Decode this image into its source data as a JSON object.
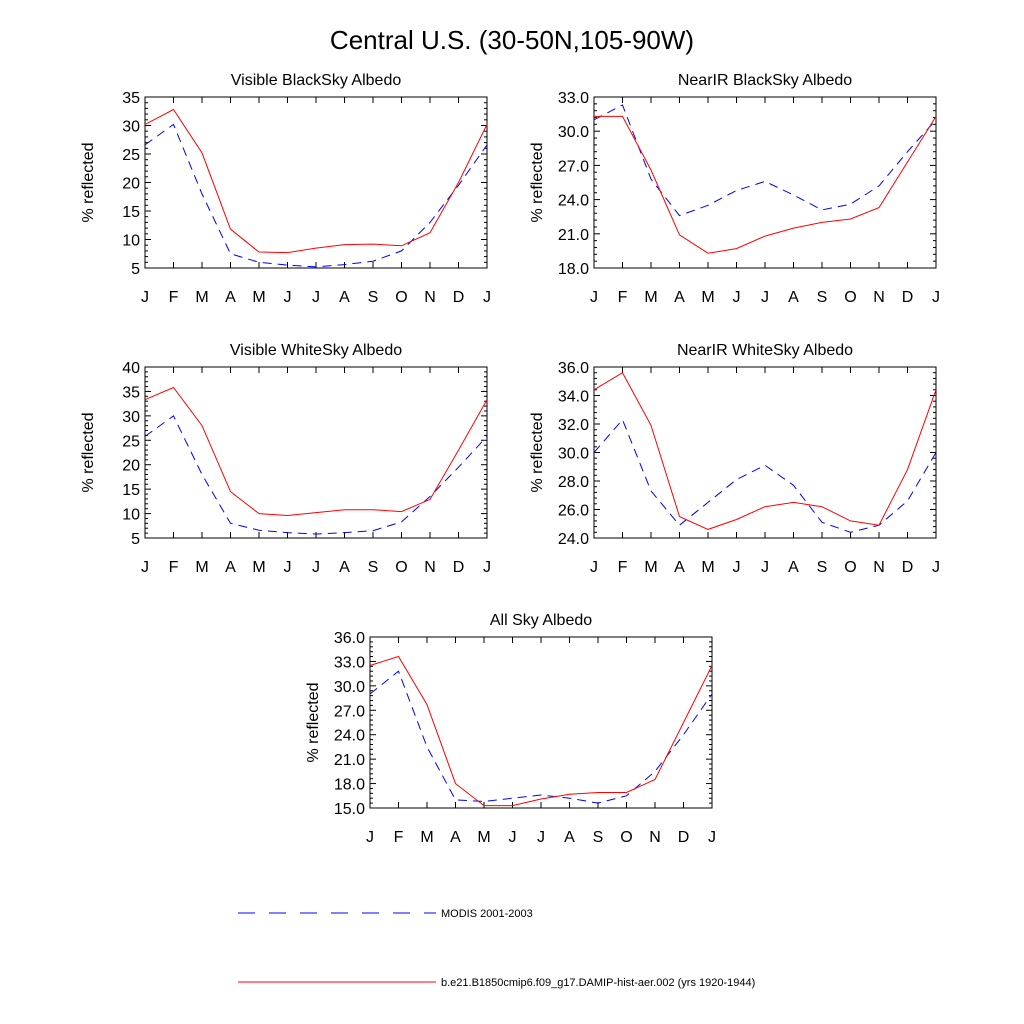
{
  "title": "Central U.S. (30-50N,105-90W)",
  "colors": {
    "model": "#ff0000",
    "modis": "#0000ff"
  },
  "legend": [
    {
      "key": "modis",
      "label": "MODIS 2001-2003",
      "style": "dashed"
    },
    {
      "key": "model",
      "label": "b.e21.B1850cmip6.f09_g17.DAMIP-hist-aer.002 (yrs 1920-1944)",
      "style": "solid"
    }
  ],
  "chart_data": [
    {
      "type": "line",
      "title": "Visible BlackSky Albedo",
      "ylabel": "% reflected",
      "x": [
        "J",
        "F",
        "M",
        "A",
        "M",
        "J",
        "J",
        "A",
        "S",
        "O",
        "N",
        "D",
        "J"
      ],
      "ylim": [
        5,
        35
      ],
      "yticks": [
        "5",
        "10",
        "15",
        "20",
        "25",
        "30",
        "35"
      ],
      "yticks_values": [
        5,
        10,
        15,
        20,
        25,
        30,
        35
      ],
      "series": [
        {
          "key": "modis",
          "values": [
            26.6,
            30.2,
            18.0,
            7.5,
            6.0,
            5.5,
            5.2,
            5.6,
            6.2,
            8.0,
            13.0,
            19.5,
            26.6
          ]
        },
        {
          "key": "model",
          "values": [
            30.2,
            32.8,
            25.2,
            11.8,
            7.8,
            7.7,
            8.5,
            9.1,
            9.2,
            8.9,
            11.2,
            20.0,
            30.2
          ]
        }
      ]
    },
    {
      "type": "line",
      "title": "NearIR BlackSky Albedo",
      "ylabel": "% reflected",
      "x": [
        "J",
        "F",
        "M",
        "A",
        "M",
        "J",
        "J",
        "A",
        "S",
        "O",
        "N",
        "D",
        "J"
      ],
      "ylim": [
        18,
        33
      ],
      "yticks": [
        "18.0",
        "21.0",
        "24.0",
        "27.0",
        "30.0",
        "33.0"
      ],
      "yticks_values": [
        18,
        21,
        24,
        27,
        30,
        33
      ],
      "series": [
        {
          "key": "modis",
          "values": [
            31.0,
            32.3,
            25.8,
            22.6,
            23.5,
            24.8,
            25.6,
            24.4,
            23.1,
            23.6,
            25.2,
            28.2,
            31.0
          ]
        },
        {
          "key": "model",
          "values": [
            31.3,
            31.3,
            26.6,
            20.9,
            19.3,
            19.7,
            20.8,
            21.5,
            22.0,
            22.3,
            23.3,
            27.3,
            31.3
          ]
        }
      ]
    },
    {
      "type": "line",
      "title": "Visible WhiteSky Albedo",
      "ylabel": "% reflected",
      "x": [
        "J",
        "F",
        "M",
        "A",
        "M",
        "J",
        "J",
        "A",
        "S",
        "O",
        "N",
        "D",
        "J"
      ],
      "ylim": [
        5,
        40
      ],
      "yticks": [
        "5",
        "10",
        "15",
        "20",
        "25",
        "30",
        "35",
        "40"
      ],
      "yticks_values": [
        5,
        10,
        15,
        20,
        25,
        30,
        35,
        40
      ],
      "series": [
        {
          "key": "modis",
          "values": [
            25.8,
            30.0,
            18.0,
            8.0,
            6.6,
            6.1,
            5.8,
            6.1,
            6.5,
            8.3,
            13.5,
            19.5,
            25.8
          ]
        },
        {
          "key": "model",
          "values": [
            33.3,
            35.8,
            28.0,
            14.5,
            10.0,
            9.6,
            10.2,
            10.8,
            10.8,
            10.4,
            12.9,
            23.0,
            33.3
          ]
        }
      ]
    },
    {
      "type": "line",
      "title": "NearIR WhiteSky Albedo",
      "ylabel": "% reflected",
      "x": [
        "J",
        "F",
        "M",
        "A",
        "M",
        "J",
        "J",
        "A",
        "S",
        "O",
        "N",
        "D",
        "J"
      ],
      "ylim": [
        24,
        36
      ],
      "yticks": [
        "24.0",
        "26.0",
        "28.0",
        "30.0",
        "32.0",
        "34.0",
        "36.0"
      ],
      "yticks_values": [
        24,
        26,
        28,
        30,
        32,
        34,
        36
      ],
      "series": [
        {
          "key": "modis",
          "values": [
            30.0,
            32.3,
            27.3,
            24.9,
            26.5,
            28.1,
            29.1,
            27.7,
            25.1,
            24.4,
            24.9,
            26.6,
            30.0
          ]
        },
        {
          "key": "model",
          "values": [
            34.4,
            35.6,
            31.9,
            25.5,
            24.6,
            25.3,
            26.2,
            26.5,
            26.2,
            25.2,
            24.9,
            28.8,
            34.4
          ]
        }
      ]
    },
    {
      "type": "line",
      "title": "All Sky Albedo",
      "ylabel": "% reflected",
      "x": [
        "J",
        "F",
        "M",
        "A",
        "M",
        "J",
        "J",
        "A",
        "S",
        "O",
        "N",
        "D",
        "J"
      ],
      "ylim": [
        15,
        36
      ],
      "yticks": [
        "15.0",
        "18.0",
        "21.0",
        "24.0",
        "27.0",
        "30.0",
        "33.0",
        "36.0"
      ],
      "yticks_values": [
        15,
        18,
        21,
        24,
        27,
        30,
        33,
        36
      ],
      "series": [
        {
          "key": "modis",
          "values": [
            29.0,
            31.8,
            22.5,
            16.0,
            15.8,
            16.2,
            16.6,
            16.2,
            15.6,
            16.5,
            19.5,
            24.0,
            29.0
          ]
        },
        {
          "key": "model",
          "values": [
            32.5,
            33.6,
            27.7,
            18.0,
            15.3,
            15.3,
            16.1,
            16.7,
            16.9,
            16.9,
            18.5,
            25.5,
            32.5
          ]
        }
      ]
    }
  ]
}
